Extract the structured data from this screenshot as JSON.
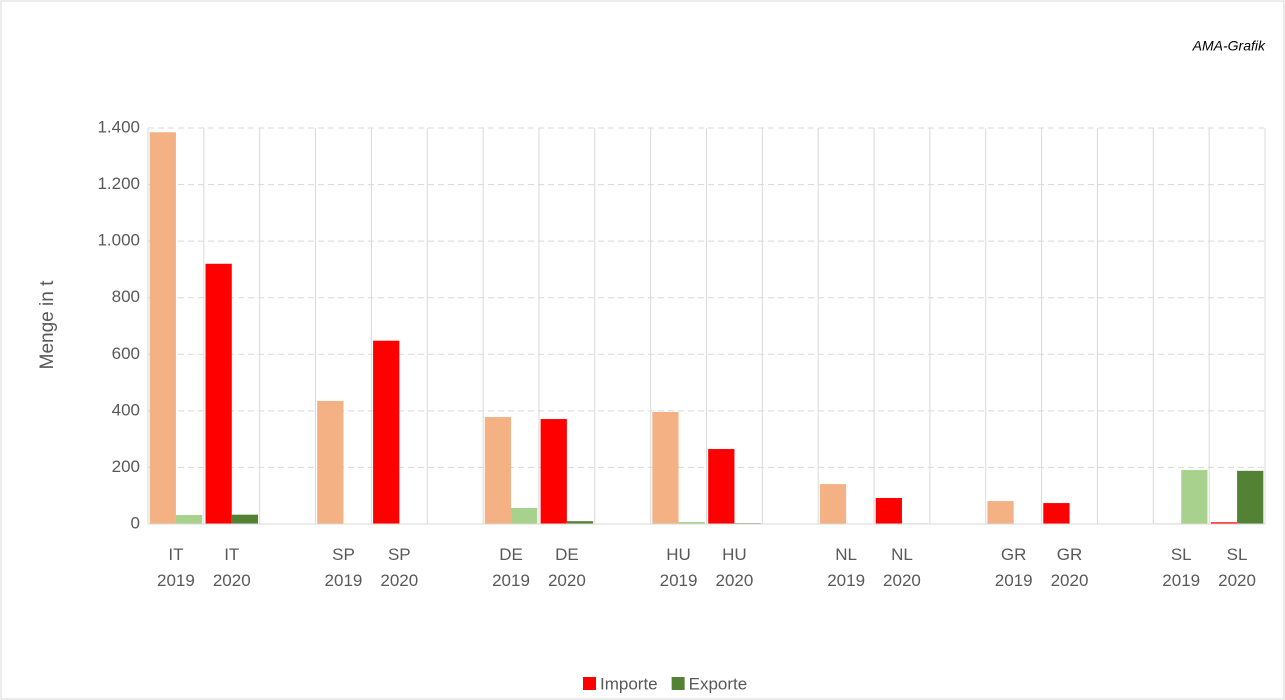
{
  "chart_data": {
    "type": "bar",
    "note": "AMA-Grafik",
    "y_label": "Menge in t",
    "categories": [
      "IT 2019",
      "IT 2020",
      null,
      "SP 2019",
      "SP 2020",
      null,
      "DE 2019",
      "DE 2020",
      null,
      "HU 2019",
      "HU 2020",
      null,
      "NL 2019",
      "NL 2020",
      null,
      "GR 2019",
      "GR 2020",
      null,
      "SL 2019",
      "SL 2020"
    ],
    "series": [
      {
        "name": "Importe",
        "color": "#ff0000",
        "colors": [
          "#f4b183",
          "#ff0000",
          null,
          "#f4b183",
          "#ff0000",
          null,
          "#f4b183",
          "#ff0000",
          null,
          "#f4b183",
          "#ff0000",
          null,
          "#f4b183",
          "#ff0000",
          null,
          "#f4b183",
          "#ff0000",
          null,
          "#f4b183",
          "#ff0000"
        ],
        "values": [
          1385,
          920,
          null,
          435,
          648,
          null,
          378,
          371,
          null,
          396,
          265,
          null,
          141,
          92,
          null,
          81,
          74,
          null,
          2,
          6
        ]
      },
      {
        "name": "Exporte",
        "color": "#548235",
        "colors": [
          "#a9d18e",
          "#548235",
          null,
          "#a9d18e",
          "#548235",
          null,
          "#a9d18e",
          "#548235",
          null,
          "#a9d18e",
          "#548235",
          null,
          "#a9d18e",
          "#548235",
          null,
          "#a9d18e",
          "#548235",
          null,
          "#a9d18e",
          "#548235"
        ],
        "values": [
          32,
          33,
          null,
          0,
          1,
          null,
          57,
          10,
          null,
          7,
          3,
          null,
          0,
          2,
          null,
          0,
          1,
          null,
          191,
          188
        ]
      }
    ],
    "ylim": [
      0,
      1400
    ],
    "yticks": [
      0,
      200,
      400,
      600,
      800,
      {
        "value": 1000,
        "label": "1.000"
      },
      {
        "value": 1200,
        "label": "1.200"
      },
      {
        "value": 1400,
        "label": "1.400"
      }
    ],
    "grid": true,
    "legend": "bottom"
  }
}
